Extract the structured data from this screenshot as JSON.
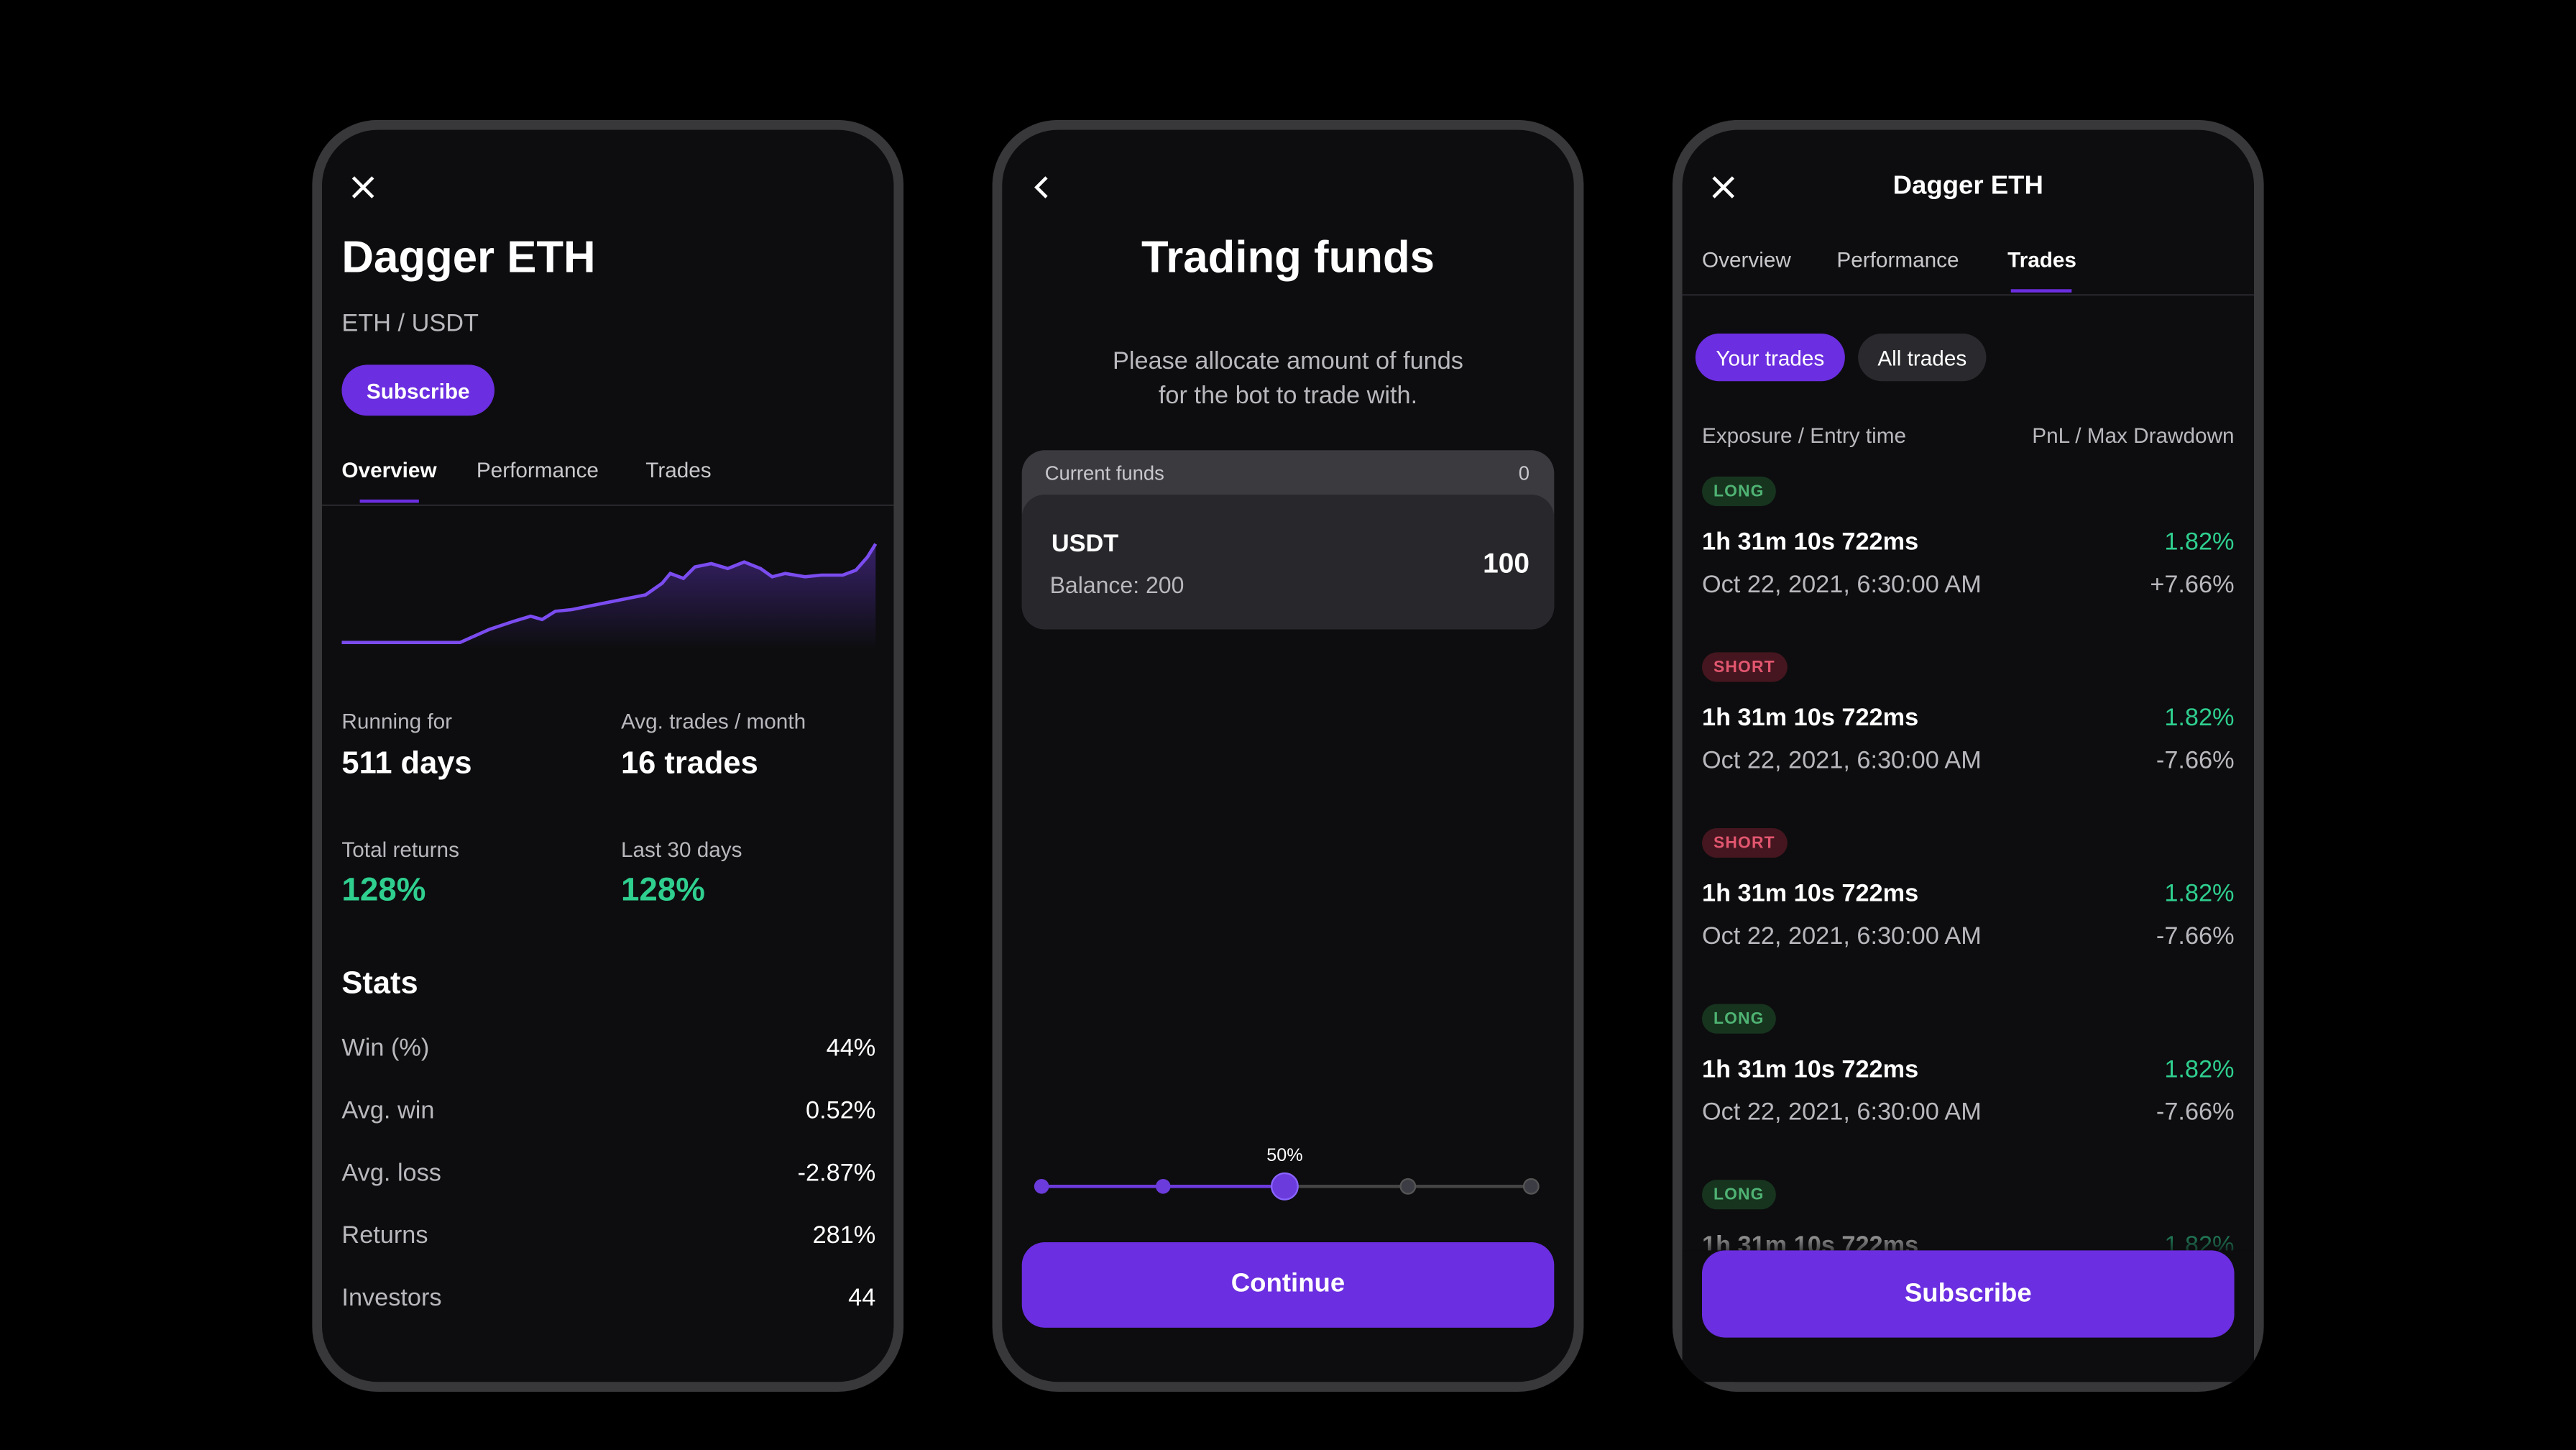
{
  "screens": [
    {
      "title": "Dagger ETH",
      "pair": "ETH / USDT",
      "subscribe": "Subscribe",
      "tabs": [
        "Overview",
        "Performance",
        "Trades"
      ],
      "metrics": [
        {
          "label": "Running for",
          "value": "511 days"
        },
        {
          "label": "Avg. trades / month",
          "value": "16 trades"
        },
        {
          "label": "Total returns",
          "value": "128%"
        },
        {
          "label": "Last 30 days",
          "value": "128%"
        }
      ],
      "stats_title": "Stats",
      "stats": [
        [
          "Win (%)",
          "44%"
        ],
        [
          "Avg. win",
          "0.52%"
        ],
        [
          "Avg. loss",
          "-2.87%"
        ],
        [
          "Returns",
          "281%"
        ],
        [
          "Investors",
          "44"
        ]
      ]
    },
    {
      "title": "Trading funds",
      "description": [
        "Please allocate amount of funds",
        "for the bot to trade with."
      ],
      "current_funds_label": "Current funds",
      "current_funds": "0",
      "asset": "USDT",
      "balance": "Balance: 200",
      "amount": "100",
      "slider_label": "50%",
      "button": "Continue"
    },
    {
      "title": "Dagger ETH",
      "tabs": [
        "Overview",
        "Performance",
        "Trades"
      ],
      "filters": [
        "Your trades",
        "All trades"
      ],
      "columns": [
        "Exposure / Entry time",
        "PnL / Max Drawdown"
      ],
      "trades": [
        {
          "side": "LONG",
          "duration": "1h 31m 10s 722ms",
          "pnl": "1.82%",
          "time": "Oct 22, 2021, 6:30:00 AM",
          "drawdown": "+7.66%"
        },
        {
          "side": "SHORT",
          "duration": "1h 31m 10s 722ms",
          "pnl": "1.82%",
          "time": "Oct 22, 2021, 6:30:00 AM",
          "drawdown": "-7.66%"
        },
        {
          "side": "SHORT",
          "duration": "1h 31m 10s 722ms",
          "pnl": "1.82%",
          "time": "Oct 22, 2021, 6:30:00 AM",
          "drawdown": "-7.66%"
        },
        {
          "side": "LONG",
          "duration": "1h 31m 10s 722ms",
          "pnl": "1.82%",
          "time": "Oct 22, 2021, 6:30:00 AM",
          "drawdown": "-7.66%"
        },
        {
          "side": "LONG",
          "duration": "1h 31m 10s 722ms",
          "pnl": "1.82%"
        }
      ],
      "button": "Subscribe"
    }
  ]
}
